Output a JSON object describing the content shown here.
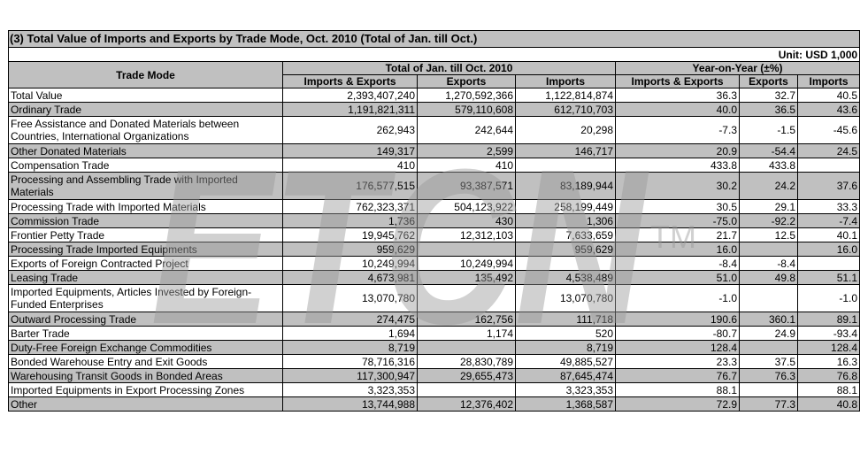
{
  "table": {
    "title": "(3) Total Value of Imports and Exports by Trade Mode, Oct. 2010 (Total of Jan. till Oct.)",
    "unit": "Unit: USD 1,000",
    "header": {
      "trade_mode": "Trade Mode",
      "group_total": "Total of Jan. till Oct. 2010",
      "group_yoy": "Year-on-Year (±%)",
      "cols": [
        "Imports & Exports",
        "Exports",
        "Imports",
        "Imports & Exports",
        "Exports",
        "Imports"
      ]
    },
    "rows": [
      {
        "name": "Total Value",
        "ie": "2,393,407,240",
        "ex": "1,270,592,366",
        "im": "1,122,814,874",
        "yie": "36.3",
        "yex": "32.7",
        "yim": "40.5",
        "shade": false,
        "tall": false
      },
      {
        "name": "Ordinary Trade",
        "ie": "1,191,821,311",
        "ex": "579,110,608",
        "im": "612,710,703",
        "yie": "40.0",
        "yex": "36.5",
        "yim": "43.6",
        "shade": true,
        "tall": false
      },
      {
        "name": "Free Assistance and Donated Materials between Countries, International Organizations",
        "ie": "262,943",
        "ex": "242,644",
        "im": "20,298",
        "yie": "-7.3",
        "yex": "-1.5",
        "yim": "-45.6",
        "shade": false,
        "tall": true
      },
      {
        "name": "Other Donated Materials",
        "ie": "149,317",
        "ex": "2,599",
        "im": "146,717",
        "yie": "20.9",
        "yex": "-54.4",
        "yim": "24.5",
        "shade": true,
        "tall": false
      },
      {
        "name": "Compensation Trade",
        "ie": "410",
        "ex": "410",
        "im": "",
        "yie": "433.8",
        "yex": "433.8",
        "yim": "",
        "shade": false,
        "tall": false
      },
      {
        "name": "Processing and Assembling Trade with Imported Materials",
        "ie": "176,577,515",
        "ex": "93,387,571",
        "im": "83,189,944",
        "yie": "30.2",
        "yex": "24.2",
        "yim": "37.6",
        "shade": true,
        "tall": true
      },
      {
        "name": "Processing Trade with Imported Materials",
        "ie": "762,323,371",
        "ex": "504,123,922",
        "im": "258,199,449",
        "yie": "30.5",
        "yex": "29.1",
        "yim": "33.3",
        "shade": false,
        "tall": false
      },
      {
        "name": "Commission Trade",
        "ie": "1,736",
        "ex": "430",
        "im": "1,306",
        "yie": "-75.0",
        "yex": "-92.2",
        "yim": "-7.4",
        "shade": true,
        "tall": false
      },
      {
        "name": "Frontier Petty Trade",
        "ie": "19,945,762",
        "ex": "12,312,103",
        "im": "7,633,659",
        "yie": "21.7",
        "yex": "12.5",
        "yim": "40.1",
        "shade": false,
        "tall": false
      },
      {
        "name": "Processing Trade Imported Equipments",
        "ie": "959,629",
        "ex": "",
        "im": "959,629",
        "yie": "16.0",
        "yex": "",
        "yim": "16.0",
        "shade": true,
        "tall": false
      },
      {
        "name": "Exports of Foreign Contracted Project",
        "ie": "10,249,994",
        "ex": "10,249,994",
        "im": "",
        "yie": "-8.4",
        "yex": "-8.4",
        "yim": "",
        "shade": false,
        "tall": false
      },
      {
        "name": "Leasing Trade",
        "ie": "4,673,981",
        "ex": "135,492",
        "im": "4,538,489",
        "yie": "51.0",
        "yex": "49.8",
        "yim": "51.1",
        "shade": true,
        "tall": false
      },
      {
        "name": "Imported Equipments, Articles Invested by Foreign-Funded Enterprises",
        "ie": "13,070,780",
        "ex": "",
        "im": "13,070,780",
        "yie": "-1.0",
        "yex": "",
        "yim": "-1.0",
        "shade": false,
        "tall": true
      },
      {
        "name": "Outward Processing Trade",
        "ie": "274,475",
        "ex": "162,756",
        "im": "111,718",
        "yie": "190.6",
        "yex": "360.1",
        "yim": "89.1",
        "shade": true,
        "tall": false
      },
      {
        "name": "Barter Trade",
        "ie": "1,694",
        "ex": "1,174",
        "im": "520",
        "yie": "-80.7",
        "yex": "24.9",
        "yim": "-93.4",
        "shade": false,
        "tall": false
      },
      {
        "name": "Duty-Free Foreign Exchange Commodities",
        "ie": "8,719",
        "ex": "",
        "im": "8,719",
        "yie": "128.4",
        "yex": "",
        "yim": "128.4",
        "shade": true,
        "tall": false
      },
      {
        "name": "Bonded Warehouse Entry and Exit Goods",
        "ie": "78,716,316",
        "ex": "28,830,789",
        "im": "49,885,527",
        "yie": "23.3",
        "yex": "37.5",
        "yim": "16.3",
        "shade": false,
        "tall": false
      },
      {
        "name": "Warehousing Transit Goods in Bonded Areas",
        "ie": "117,300,947",
        "ex": "29,655,473",
        "im": "87,645,474",
        "yie": "76.7",
        "yex": "76.3",
        "yim": "76.8",
        "shade": true,
        "tall": false
      },
      {
        "name": "Imported Equipments in Export Processing Zones",
        "ie": "3,323,353",
        "ex": "",
        "im": "3,323,353",
        "yie": "88.1",
        "yex": "",
        "yim": "88.1",
        "shade": false,
        "tall": false
      },
      {
        "name": "Other",
        "ie": "13,744,988",
        "ex": "12,376,402",
        "im": "1,368,587",
        "yie": "72.9",
        "yex": "77.3",
        "yim": "40.8",
        "shade": true,
        "tall": false
      }
    ]
  },
  "watermark": {
    "text": "ETCN",
    "tm": "TM",
    "color": "#9a9a9a"
  }
}
